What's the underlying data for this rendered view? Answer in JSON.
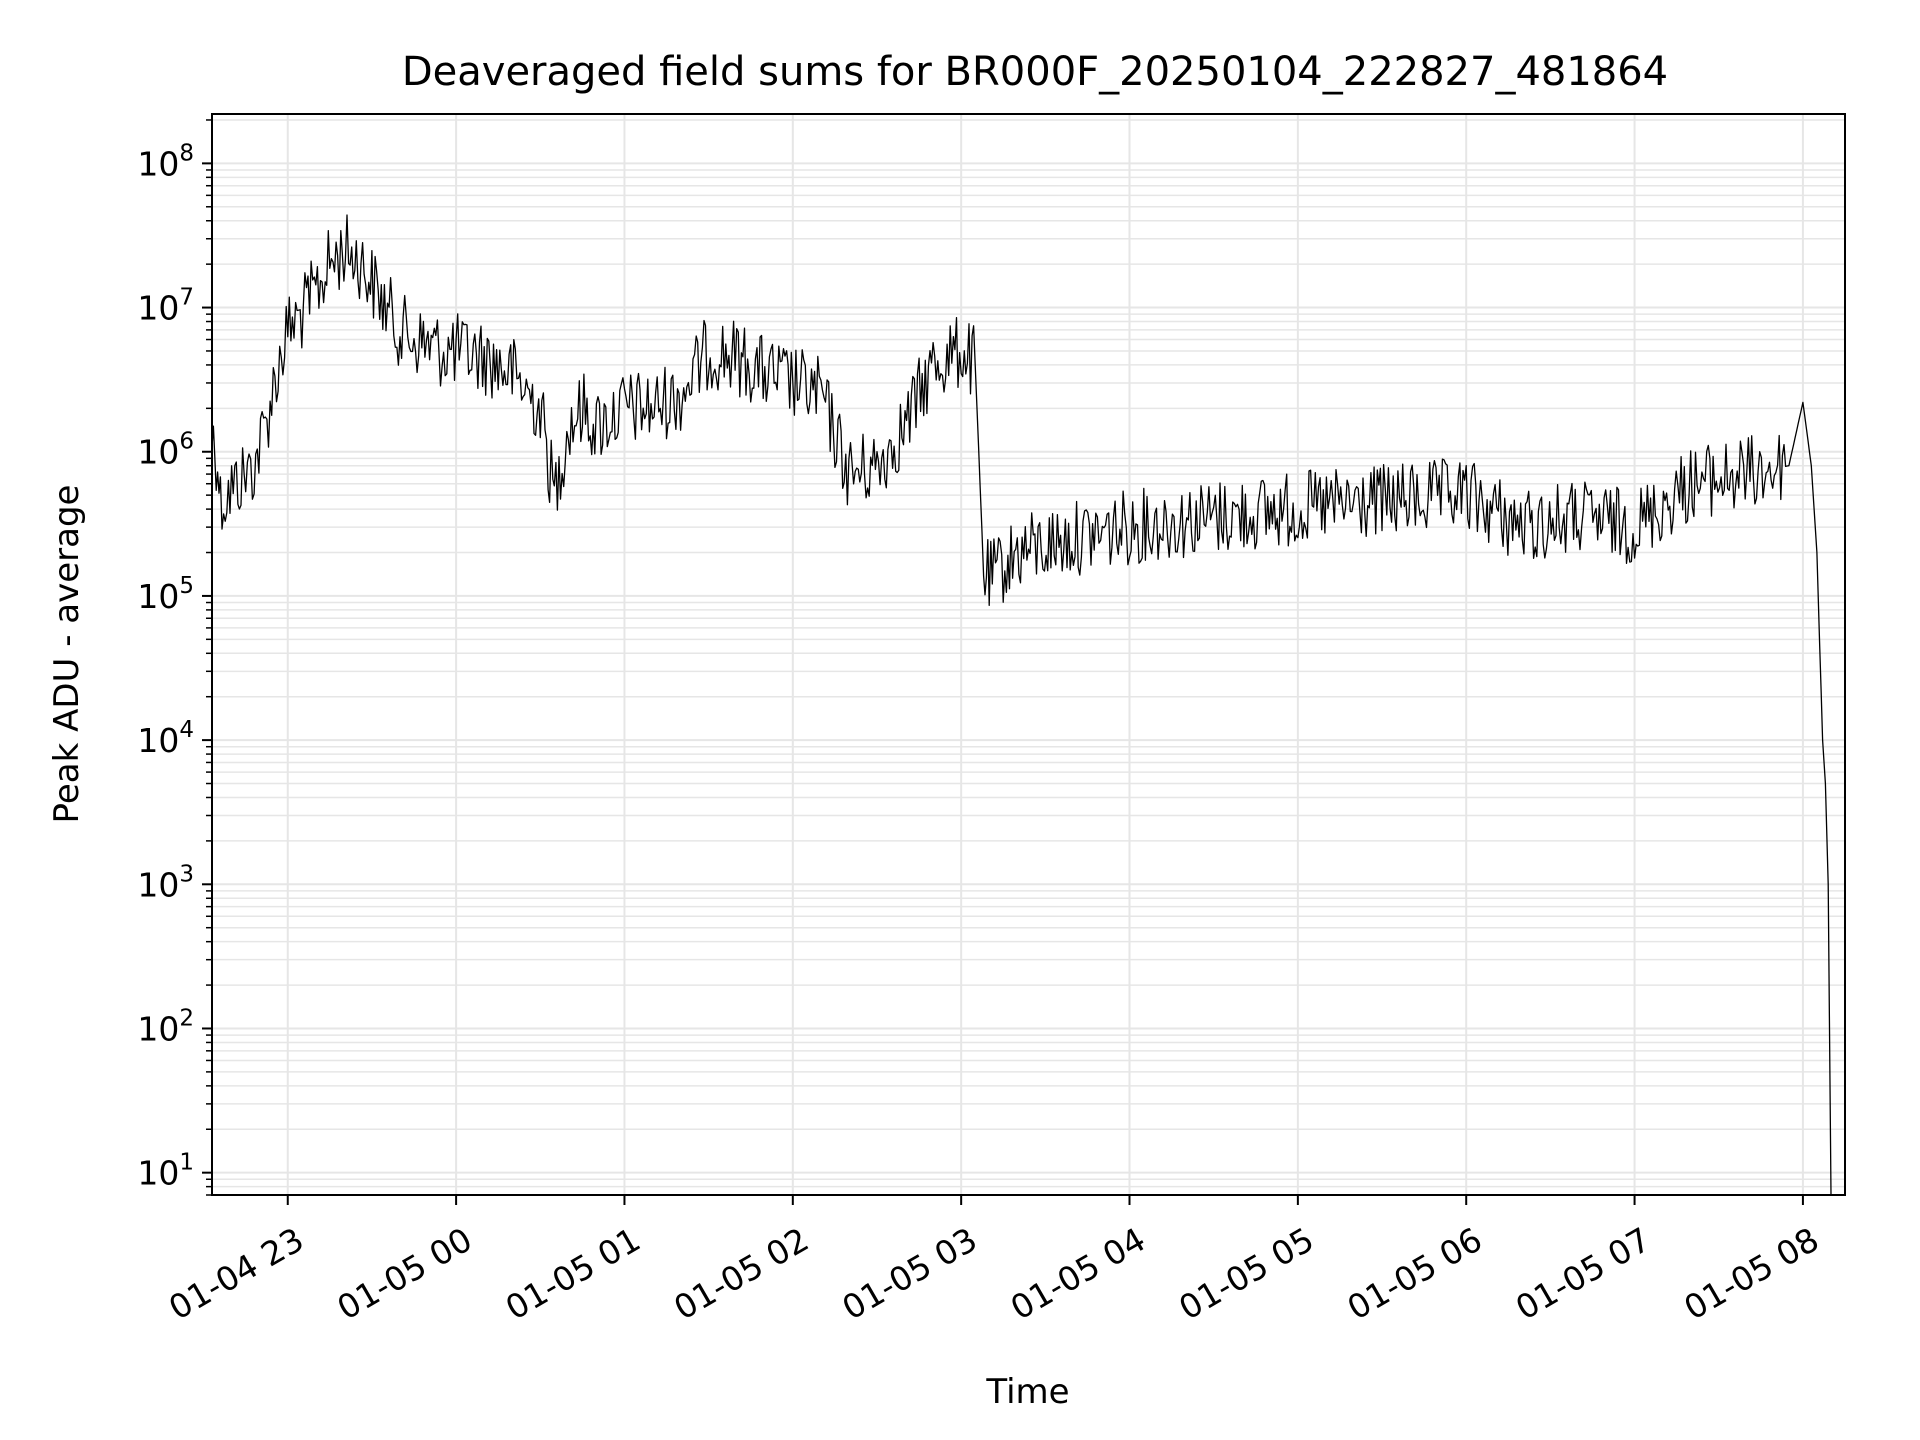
{
  "chart_data": {
    "type": "line",
    "title": "Deaveraged field sums for BR000F_20250104_222827_481864",
    "xlabel": "Time",
    "ylabel": "Peak ADU - average",
    "yscale": "log",
    "ylim": [
      7,
      220000000
    ],
    "xlim": [
      "2025-01-04 22:33",
      "2025-01-05 08:15"
    ],
    "grid": true,
    "line_color": "#000000",
    "grid_color": "#e6e6e6",
    "x_ticks": [
      {
        "value": "2025-01-04 23:00",
        "label": "01-04 23"
      },
      {
        "value": "2025-01-05 00:00",
        "label": "01-05 00"
      },
      {
        "value": "2025-01-05 01:00",
        "label": "01-05 01"
      },
      {
        "value": "2025-01-05 02:00",
        "label": "01-05 02"
      },
      {
        "value": "2025-01-05 03:00",
        "label": "01-05 03"
      },
      {
        "value": "2025-01-05 04:00",
        "label": "01-05 04"
      },
      {
        "value": "2025-01-05 05:00",
        "label": "01-05 05"
      },
      {
        "value": "2025-01-05 06:00",
        "label": "01-05 06"
      },
      {
        "value": "2025-01-05 07:00",
        "label": "01-05 07"
      },
      {
        "value": "2025-01-05 08:00",
        "label": "01-05 08"
      }
    ],
    "y_ticks": [
      {
        "value": 10,
        "base": "10",
        "exp": "1"
      },
      {
        "value": 100,
        "base": "10",
        "exp": "2"
      },
      {
        "value": 1000,
        "base": "10",
        "exp": "3"
      },
      {
        "value": 10000,
        "base": "10",
        "exp": "4"
      },
      {
        "value": 100000,
        "base": "10",
        "exp": "5"
      },
      {
        "value": 1000000,
        "base": "10",
        "exp": "6"
      },
      {
        "value": 10000000,
        "base": "10",
        "exp": "7"
      },
      {
        "value": 100000000,
        "base": "10",
        "exp": "8"
      }
    ],
    "series": [
      {
        "x": [
          "2025-01-04 22:33",
          "2025-01-04 22:35",
          "2025-01-04 22:36",
          "2025-01-04 22:40",
          "2025-01-04 22:45",
          "2025-01-04 22:48",
          "2025-01-04 22:52",
          "2025-01-04 22:56",
          "2025-01-04 23:00",
          "2025-01-04 23:05",
          "2025-01-04 23:10",
          "2025-01-04 23:15",
          "2025-01-04 23:20",
          "2025-01-04 23:25",
          "2025-01-04 23:30",
          "2025-01-04 23:35",
          "2025-01-04 23:40",
          "2025-01-04 23:45",
          "2025-01-04 23:50",
          "2025-01-04 23:55",
          "2025-01-05 00:00",
          "2025-01-05 00:10",
          "2025-01-05 00:20",
          "2025-01-05 00:30",
          "2025-01-05 00:35",
          "2025-01-05 00:40",
          "2025-01-05 00:45",
          "2025-01-05 00:50",
          "2025-01-05 01:00",
          "2025-01-05 01:10",
          "2025-01-05 01:20",
          "2025-01-05 01:30",
          "2025-01-05 01:40",
          "2025-01-05 01:50",
          "2025-01-05 02:00",
          "2025-01-05 02:10",
          "2025-01-05 02:20",
          "2025-01-05 02:30",
          "2025-01-05 02:40",
          "2025-01-05 02:50",
          "2025-01-05 03:00",
          "2025-01-05 03:05",
          "2025-01-05 03:08",
          "2025-01-05 03:10",
          "2025-01-05 03:20",
          "2025-01-05 03:40",
          "2025-01-05 04:00",
          "2025-01-05 04:30",
          "2025-01-05 05:00",
          "2025-01-05 05:30",
          "2025-01-05 06:00",
          "2025-01-05 06:20",
          "2025-01-05 06:40",
          "2025-01-05 07:00",
          "2025-01-05 07:20",
          "2025-01-05 07:40",
          "2025-01-05 07:55",
          "2025-01-05 08:00",
          "2025-01-05 08:03",
          "2025-01-05 08:05",
          "2025-01-05 08:07",
          "2025-01-05 08:08",
          "2025-01-05 08:09",
          "2025-01-05 08:10"
        ],
        "y": [
          1300000,
          900000,
          450000,
          550000,
          700000,
          800000,
          1500000,
          3500000,
          7000000,
          9000000,
          13000000,
          20000000,
          25000000,
          22000000,
          15000000,
          10000000,
          7000000,
          6000000,
          5500000,
          5000000,
          5000000,
          4500000,
          3500000,
          2000000,
          500000,
          1500000,
          2000000,
          1500000,
          2000000,
          2000000,
          2500000,
          5000000,
          4500000,
          3500000,
          3000000,
          2500000,
          700000,
          800000,
          1500000,
          4000000,
          5000000,
          4000000,
          150000,
          130000,
          200000,
          250000,
          300000,
          350000,
          400000,
          450000,
          500000,
          300000,
          350000,
          300000,
          600000,
          700000,
          800000,
          2200000,
          800000,
          200000,
          10000,
          5000,
          1000,
          7
        ]
      }
    ]
  }
}
